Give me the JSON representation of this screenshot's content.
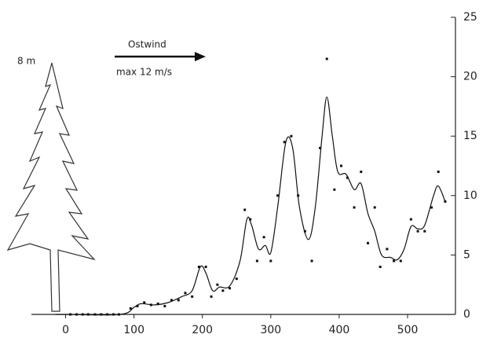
{
  "chart_data": {
    "type": "scatter",
    "annotations": {
      "height": "8 m",
      "wind": "Ostwind",
      "max": "max 12 m/s"
    },
    "xlim": [
      -50,
      570
    ],
    "xticks": [
      0,
      100,
      200,
      300,
      400,
      500
    ],
    "ylim": [
      0,
      25
    ],
    "yticks": [
      0,
      5,
      10,
      15,
      20,
      25
    ],
    "series": [
      {
        "type": "scatter",
        "color": "#111",
        "x": [
          7,
          16,
          25,
          33,
          43,
          52,
          61,
          70,
          78,
          95,
          105,
          115,
          125,
          135,
          145,
          155,
          165,
          175,
          185,
          195,
          205,
          213,
          222,
          230,
          240,
          250,
          262,
          270,
          280,
          290,
          300,
          310,
          320,
          330,
          340,
          350,
          360,
          372,
          382,
          393,
          403,
          412,
          422,
          432,
          442,
          452,
          460,
          470,
          480,
          490,
          505,
          515,
          525,
          535,
          545,
          555
        ],
        "values": [
          0,
          0,
          0,
          0,
          0,
          0,
          0,
          0,
          0,
          0.5,
          0.7,
          1,
          0.8,
          0.9,
          0.7,
          1.2,
          1.2,
          1.8,
          1.5,
          4,
          4,
          1.5,
          2.5,
          2,
          2.2,
          3,
          8.8,
          8,
          4.5,
          6.5,
          4.5,
          10,
          14.5,
          15,
          10,
          7,
          4.5,
          14,
          21.5,
          10.5,
          12.5,
          11.5,
          9,
          12,
          6,
          9,
          4,
          5.5,
          4.5,
          4.5,
          8,
          7,
          7,
          9,
          12,
          9.5
        ]
      },
      {
        "type": "line",
        "color": "#111",
        "x": [
          -15,
          0,
          80,
          100,
          110,
          130,
          150,
          170,
          185,
          197,
          205,
          215,
          225,
          240,
          255,
          265,
          272,
          282,
          292,
          300,
          310,
          322,
          332,
          342,
          355,
          365,
          375,
          382,
          390,
          398,
          410,
          422,
          432,
          442,
          452,
          462,
          475,
          485,
          495,
          505,
          515,
          525,
          538,
          545,
          555
        ],
        "values": [
          0,
          0,
          0,
          0.6,
          0.9,
          0.8,
          1,
          1.5,
          2,
          4,
          3.5,
          2,
          2.3,
          2.4,
          4.5,
          8,
          7.5,
          5.5,
          5.8,
          5.2,
          9,
          14.5,
          14,
          9,
          6.3,
          9,
          15,
          18.3,
          15,
          12,
          11.8,
          10.5,
          11,
          8.5,
          7,
          5,
          4.8,
          4.6,
          5.5,
          7.4,
          7.2,
          7.5,
          10,
          10.8,
          9.5
        ]
      }
    ]
  }
}
